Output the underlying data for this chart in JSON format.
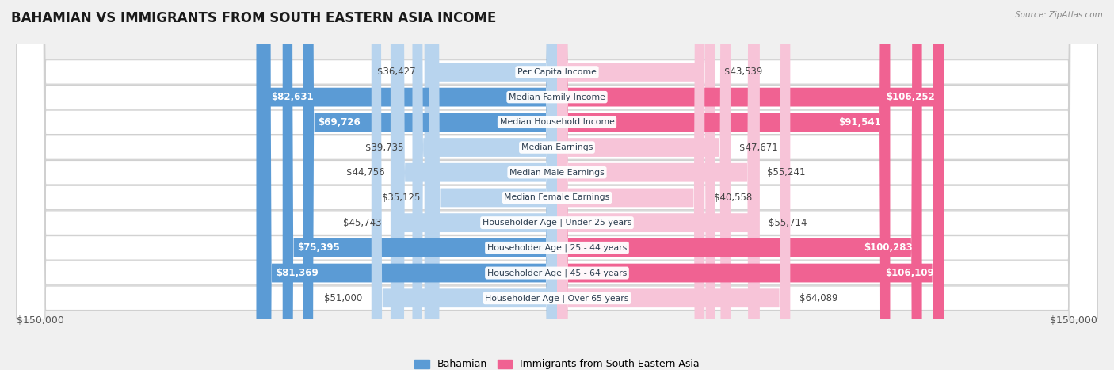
{
  "title": "BAHAMIAN VS IMMIGRANTS FROM SOUTH EASTERN ASIA INCOME",
  "source": "Source: ZipAtlas.com",
  "categories": [
    "Per Capita Income",
    "Median Family Income",
    "Median Household Income",
    "Median Earnings",
    "Median Male Earnings",
    "Median Female Earnings",
    "Householder Age | Under 25 years",
    "Householder Age | 25 - 44 years",
    "Householder Age | 45 - 64 years",
    "Householder Age | Over 65 years"
  ],
  "bahamian_values": [
    36427,
    82631,
    69726,
    39735,
    44756,
    35125,
    45743,
    75395,
    81369,
    51000
  ],
  "immigrant_values": [
    43539,
    106252,
    91541,
    47671,
    55241,
    40558,
    55714,
    100283,
    106109,
    64089
  ],
  "bahamian_labels": [
    "$36,427",
    "$82,631",
    "$69,726",
    "$39,735",
    "$44,756",
    "$35,125",
    "$45,743",
    "$75,395",
    "$81,369",
    "$51,000"
  ],
  "immigrant_labels": [
    "$43,539",
    "$106,252",
    "$91,541",
    "$47,671",
    "$55,241",
    "$40,558",
    "$55,714",
    "$100,283",
    "$106,109",
    "$64,089"
  ],
  "bahamian_color_light": "#b8d4ee",
  "bahamian_color_dark": "#5b9bd5",
  "immigrant_color_light": "#f7c4d8",
  "immigrant_color_dark": "#f06292",
  "bah_threshold": 60000,
  "imm_threshold": 70000,
  "max_value": 150000,
  "legend_bahamian": "Bahamian",
  "legend_immigrant": "Immigrants from South Eastern Asia",
  "xlabel_left": "$150,000",
  "xlabel_right": "$150,000",
  "background_color": "#f0f0f0",
  "row_bg_color": "#ffffff",
  "row_alt_bg": "#ebebeb",
  "label_fontsize": 8.5,
  "title_fontsize": 12
}
